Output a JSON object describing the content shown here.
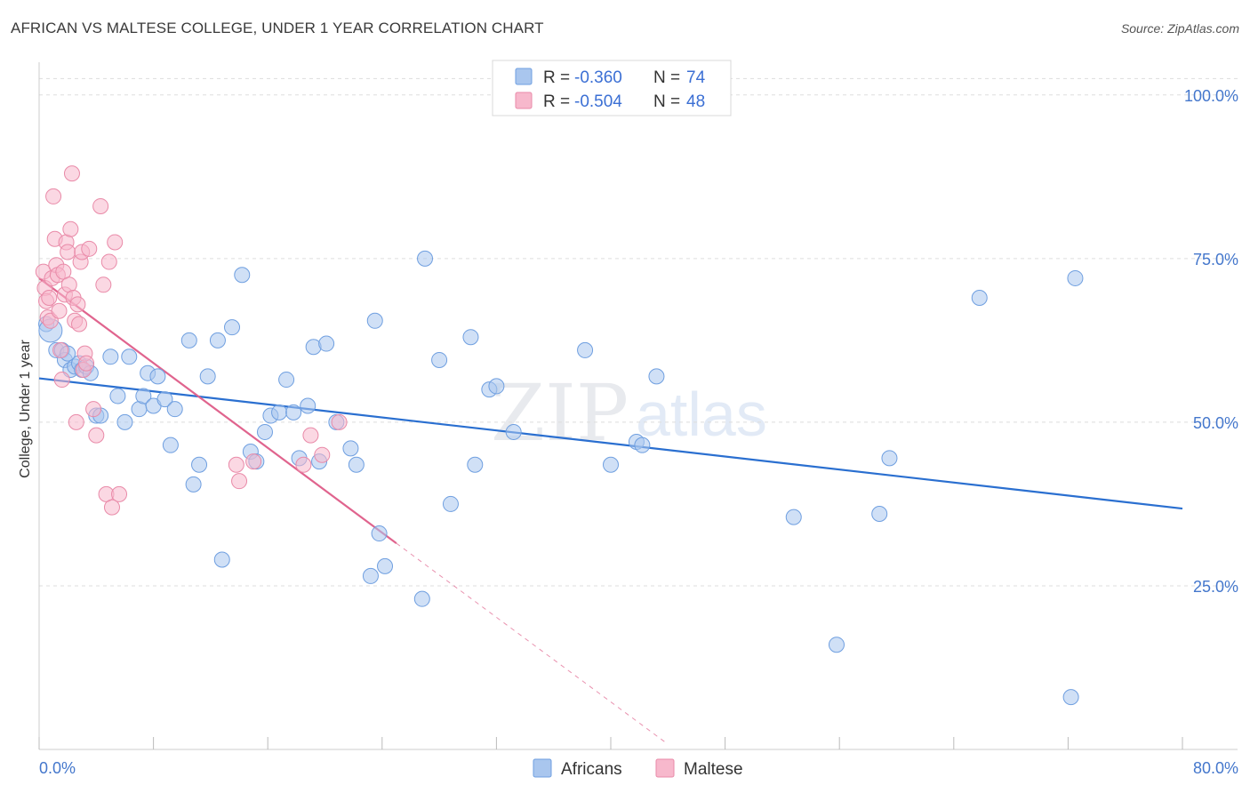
{
  "title": "AFRICAN VS MALTESE COLLEGE, UNDER 1 YEAR CORRELATION CHART",
  "source": "Source: ZipAtlas.com",
  "watermark": {
    "zip": "ZIP",
    "atlas": "atlas"
  },
  "colors": {
    "blue_fill": "#a9c6ee",
    "blue_stroke": "#6f9fe0",
    "blue_line": "#2a6fd0",
    "pink_fill": "#f7b8cc",
    "pink_stroke": "#e98aa8",
    "pink_line": "#e0648e",
    "grid": "#dddddd",
    "tick_label": "#4477cc"
  },
  "legend": {
    "r_label": "R =",
    "n_label": "N =",
    "rows": [
      {
        "series": "Africans",
        "r": "-0.360",
        "n": "74"
      },
      {
        "series": "Maltese",
        "r": "-0.504",
        "n": "48"
      }
    ]
  },
  "chart_data": {
    "type": "scatter",
    "title": "AFRICAN VS MALTESE COLLEGE, UNDER 1 YEAR CORRELATION CHART",
    "xlabel": "",
    "ylabel": "College, Under 1 year",
    "xlim": [
      0,
      80
    ],
    "ylim": [
      0,
      105
    ],
    "x_tick_labels": [
      "0.0%",
      "80.0%"
    ],
    "y_ticks": [
      25,
      50,
      75,
      100
    ],
    "y_tick_labels": [
      "25.0%",
      "50.0%",
      "75.0%",
      "100.0%"
    ],
    "grid": true,
    "legend_position": "bottom-center",
    "series": [
      {
        "name": "Africans",
        "color": "#a9c6ee",
        "trend": {
          "x0": 0,
          "y0": 56.7,
          "x1": 80,
          "y1": 36.8
        },
        "points": [
          [
            0.5,
            65
          ],
          [
            0.8,
            64
          ],
          [
            1.2,
            61
          ],
          [
            1.6,
            61
          ],
          [
            1.8,
            59.5
          ],
          [
            2.0,
            60.5
          ],
          [
            2.2,
            58
          ],
          [
            2.5,
            58.5
          ],
          [
            2.8,
            59
          ],
          [
            3.0,
            58
          ],
          [
            3.3,
            58.5
          ],
          [
            3.6,
            57.5
          ],
          [
            4.0,
            51
          ],
          [
            4.3,
            51
          ],
          [
            5.0,
            60
          ],
          [
            5.5,
            54
          ],
          [
            6.0,
            50
          ],
          [
            6.3,
            60
          ],
          [
            7.0,
            52
          ],
          [
            7.3,
            54
          ],
          [
            7.6,
            57.5
          ],
          [
            8.0,
            52.5
          ],
          [
            8.3,
            57
          ],
          [
            8.8,
            53.5
          ],
          [
            9.2,
            46.5
          ],
          [
            9.5,
            52
          ],
          [
            10.5,
            62.5
          ],
          [
            10.8,
            40.5
          ],
          [
            11.2,
            43.5
          ],
          [
            11.8,
            57
          ],
          [
            12.5,
            62.5
          ],
          [
            12.8,
            29
          ],
          [
            13.5,
            64.5
          ],
          [
            14.2,
            72.5
          ],
          [
            14.8,
            45.5
          ],
          [
            15.2,
            44
          ],
          [
            15.8,
            48.5
          ],
          [
            16.2,
            51
          ],
          [
            16.8,
            51.5
          ],
          [
            17.3,
            56.5
          ],
          [
            17.8,
            51.5
          ],
          [
            18.2,
            44.5
          ],
          [
            18.8,
            52.5
          ],
          [
            19.2,
            61.5
          ],
          [
            19.6,
            44
          ],
          [
            20.1,
            62
          ],
          [
            20.8,
            50
          ],
          [
            21.8,
            46
          ],
          [
            22.2,
            43.5
          ],
          [
            23.2,
            26.5
          ],
          [
            23.5,
            65.5
          ],
          [
            23.8,
            33
          ],
          [
            24.2,
            28
          ],
          [
            26.8,
            23
          ],
          [
            27.0,
            75
          ],
          [
            28.0,
            59.5
          ],
          [
            28.8,
            37.5
          ],
          [
            30.2,
            63
          ],
          [
            30.5,
            43.5
          ],
          [
            31.5,
            55
          ],
          [
            32.0,
            55.5
          ],
          [
            33.2,
            48.5
          ],
          [
            38.2,
            61
          ],
          [
            40.0,
            43.5
          ],
          [
            41.8,
            47
          ],
          [
            42.2,
            46.5
          ],
          [
            43.2,
            57
          ],
          [
            52.8,
            35.5
          ],
          [
            55.8,
            16
          ],
          [
            58.8,
            36
          ],
          [
            59.5,
            44.5
          ],
          [
            65.8,
            69
          ],
          [
            72.2,
            8
          ],
          [
            72.5,
            72
          ]
        ]
      },
      {
        "name": "Maltese",
        "color": "#f7b8cc",
        "trend": {
          "x0": 0,
          "y0": 72.0,
          "x1": 25,
          "y1": 31.5,
          "dash_to": {
            "x": 44,
            "y": 0.8
          }
        },
        "points": [
          [
            0.3,
            73
          ],
          [
            0.4,
            70.5
          ],
          [
            0.5,
            68.5
          ],
          [
            0.6,
            66
          ],
          [
            0.7,
            69
          ],
          [
            0.8,
            65.5
          ],
          [
            0.9,
            72
          ],
          [
            1.0,
            84.5
          ],
          [
            1.1,
            78
          ],
          [
            1.2,
            74
          ],
          [
            1.3,
            72.5
          ],
          [
            1.4,
            67
          ],
          [
            1.5,
            61
          ],
          [
            1.6,
            56.5
          ],
          [
            1.7,
            73
          ],
          [
            1.8,
            69.5
          ],
          [
            1.9,
            77.5
          ],
          [
            2.0,
            76
          ],
          [
            2.1,
            71
          ],
          [
            2.2,
            79.5
          ],
          [
            2.3,
            88
          ],
          [
            2.4,
            69
          ],
          [
            2.5,
            65.5
          ],
          [
            2.6,
            50
          ],
          [
            2.7,
            68
          ],
          [
            2.8,
            65
          ],
          [
            2.9,
            74.5
          ],
          [
            3.0,
            76
          ],
          [
            3.1,
            58
          ],
          [
            3.2,
            60.5
          ],
          [
            3.3,
            59
          ],
          [
            3.5,
            76.5
          ],
          [
            3.8,
            52
          ],
          [
            4.0,
            48
          ],
          [
            4.3,
            83
          ],
          [
            4.5,
            71
          ],
          [
            4.7,
            39
          ],
          [
            4.9,
            74.5
          ],
          [
            5.1,
            37
          ],
          [
            5.3,
            77.5
          ],
          [
            5.6,
            39
          ],
          [
            14.0,
            41
          ],
          [
            15.0,
            44
          ],
          [
            19.0,
            48
          ],
          [
            21.0,
            50
          ],
          [
            19.8,
            45
          ],
          [
            13.8,
            43.5
          ],
          [
            18.5,
            43.5
          ]
        ]
      }
    ]
  }
}
